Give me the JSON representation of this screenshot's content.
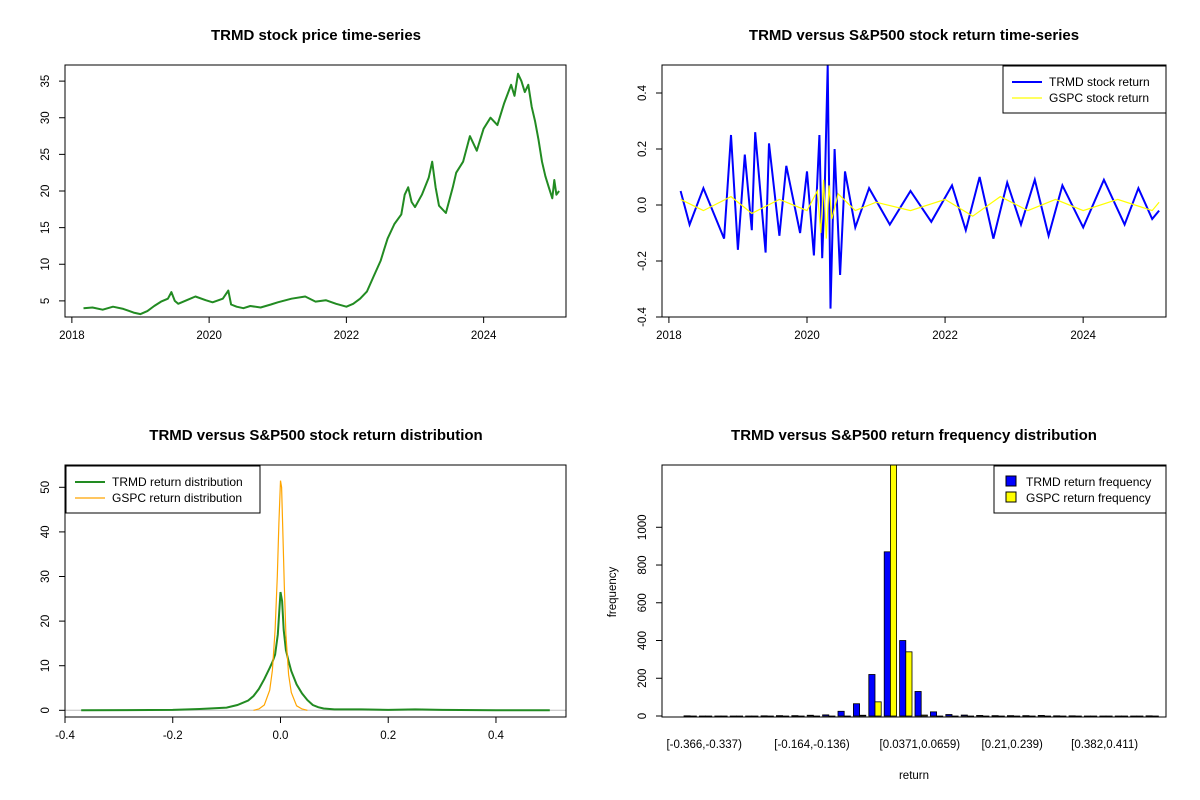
{
  "colors": {
    "price": "#228B22",
    "trmd_return": "#0000FF",
    "gspc_return": "#FFFF00",
    "trmd_density": "#228B22",
    "gspc_density": "#FFA500",
    "hist_trmd": "#0000FF",
    "hist_gspc": "#FFFF00",
    "zero_line": "#BEBEBE"
  },
  "chart_data": [
    {
      "id": "price",
      "type": "line",
      "title": "TRMD stock price time-series",
      "xlabel": "",
      "ylabel": "",
      "xlim": [
        2017.9,
        2025.2
      ],
      "ylim": [
        2.8,
        37.2
      ],
      "x_ticks": [
        2018,
        2020,
        2022,
        2024
      ],
      "x_tick_labels": [
        "2018",
        "2020",
        "2022",
        "2024"
      ],
      "y_ticks": [
        5,
        10,
        15,
        20,
        25,
        30,
        35
      ],
      "y_tick_labels": [
        "5",
        "10",
        "15",
        "20",
        "25",
        "30",
        "35"
      ],
      "series": [
        {
          "name": "TRMD price",
          "x": [
            2018.17,
            2018.3,
            2018.45,
            2018.6,
            2018.75,
            2018.9,
            2019.0,
            2019.1,
            2019.2,
            2019.3,
            2019.4,
            2019.45,
            2019.5,
            2019.55,
            2019.7,
            2019.8,
            2019.95,
            2020.05,
            2020.2,
            2020.28,
            2020.32,
            2020.4,
            2020.5,
            2020.6,
            2020.75,
            2020.9,
            2021.0,
            2021.2,
            2021.4,
            2021.55,
            2021.7,
            2021.85,
            2022.0,
            2022.1,
            2022.2,
            2022.3,
            2022.4,
            2022.5,
            2022.55,
            2022.6,
            2022.7,
            2022.8,
            2022.85,
            2022.9,
            2022.95,
            2023.0,
            2023.1,
            2023.2,
            2023.25,
            2023.3,
            2023.35,
            2023.45,
            2023.55,
            2023.6,
            2023.7,
            2023.8,
            2023.9,
            2024.0,
            2024.1,
            2024.2,
            2024.3,
            2024.4,
            2024.45,
            2024.5,
            2024.55,
            2024.6,
            2024.65,
            2024.7,
            2024.75,
            2024.8,
            2024.85,
            2024.9,
            2024.95,
            2025.0,
            2025.03,
            2025.06,
            2025.1
          ],
          "values": [
            4.0,
            4.1,
            3.8,
            4.2,
            3.9,
            3.4,
            3.2,
            3.6,
            4.3,
            4.9,
            5.3,
            6.2,
            5.0,
            4.6,
            5.2,
            5.6,
            5.1,
            4.8,
            5.3,
            6.4,
            4.5,
            4.2,
            4.0,
            4.3,
            4.1,
            4.5,
            4.8,
            5.3,
            5.6,
            4.9,
            5.1,
            4.6,
            4.2,
            4.6,
            5.3,
            6.3,
            8.4,
            10.5,
            12.0,
            13.5,
            15.5,
            16.8,
            19.5,
            20.5,
            18.5,
            17.8,
            19.5,
            21.8,
            24.0,
            20.5,
            18.0,
            17.0,
            20.5,
            22.5,
            24.0,
            27.5,
            25.5,
            28.5,
            30.0,
            29.0,
            32.0,
            34.5,
            33.0,
            36.0,
            35.0,
            33.5,
            34.5,
            31.5,
            29.5,
            27.0,
            24.0,
            22.0,
            20.5,
            19.0,
            21.5,
            19.5,
            20.0
          ]
        }
      ]
    },
    {
      "id": "returns_ts",
      "type": "line",
      "title": "TRMD versus S&P500 stock return time-series",
      "xlabel": "",
      "ylabel": "",
      "xlim": [
        2017.9,
        2025.2
      ],
      "ylim": [
        -0.4,
        0.5
      ],
      "x_ticks": [
        2018,
        2020,
        2022,
        2024
      ],
      "x_tick_labels": [
        "2018",
        "2020",
        "2022",
        "2024"
      ],
      "y_ticks": [
        -0.4,
        -0.2,
        0.0,
        0.2,
        0.4
      ],
      "y_tick_labels": [
        "-0.4",
        "-0.2",
        "0.0",
        "0.2",
        "0.4"
      ],
      "legend": [
        "TRMD stock return",
        "GSPC stock return"
      ],
      "legend_position": "top-right",
      "series": [
        {
          "name": "TRMD stock return",
          "x": [
            2018.17,
            2018.3,
            2018.5,
            2018.8,
            2018.9,
            2019.0,
            2019.1,
            2019.2,
            2019.25,
            2019.4,
            2019.45,
            2019.6,
            2019.7,
            2019.9,
            2020.0,
            2020.1,
            2020.18,
            2020.22,
            2020.26,
            2020.3,
            2020.34,
            2020.4,
            2020.48,
            2020.55,
            2020.7,
            2020.9,
            2021.2,
            2021.5,
            2021.8,
            2022.1,
            2022.3,
            2022.5,
            2022.7,
            2022.9,
            2023.1,
            2023.3,
            2023.5,
            2023.7,
            2024.0,
            2024.3,
            2024.6,
            2024.8,
            2025.0,
            2025.1
          ],
          "values": [
            0.05,
            -0.07,
            0.06,
            -0.12,
            0.25,
            -0.16,
            0.18,
            -0.09,
            0.26,
            -0.17,
            0.22,
            -0.11,
            0.14,
            -0.1,
            0.12,
            -0.18,
            0.25,
            -0.19,
            0.08,
            0.5,
            -0.37,
            0.2,
            -0.25,
            0.12,
            -0.08,
            0.06,
            -0.07,
            0.05,
            -0.06,
            0.07,
            -0.09,
            0.1,
            -0.12,
            0.08,
            -0.07,
            0.09,
            -0.11,
            0.07,
            -0.08,
            0.09,
            -0.07,
            0.06,
            -0.05,
            -0.02
          ]
        },
        {
          "name": "GSPC stock return",
          "x": [
            2018.17,
            2018.5,
            2018.9,
            2019.2,
            2019.6,
            2020.0,
            2020.15,
            2020.2,
            2020.24,
            2020.28,
            2020.32,
            2020.36,
            2020.45,
            2020.7,
            2021.0,
            2021.5,
            2022.0,
            2022.4,
            2022.8,
            2023.2,
            2023.6,
            2024.0,
            2024.5,
            2025.0,
            2025.1
          ],
          "values": [
            0.02,
            -0.02,
            0.03,
            -0.03,
            0.02,
            -0.02,
            0.05,
            -0.1,
            0.09,
            -0.12,
            0.07,
            -0.05,
            0.04,
            -0.02,
            0.01,
            -0.02,
            0.02,
            -0.04,
            0.03,
            -0.02,
            0.02,
            -0.02,
            0.02,
            -0.02,
            0.01
          ]
        }
      ]
    },
    {
      "id": "density",
      "type": "line",
      "title": "TRMD versus S&P500 stock return distribution",
      "xlabel": "",
      "ylabel": "",
      "xlim": [
        -0.4,
        0.53
      ],
      "ylim": [
        -1.5,
        55
      ],
      "x_ticks": [
        -0.4,
        -0.2,
        0.0,
        0.2,
        0.4
      ],
      "x_tick_labels": [
        "-0.4",
        "-0.2",
        "0.0",
        "0.2",
        "0.4"
      ],
      "y_ticks": [
        0,
        10,
        20,
        30,
        40,
        50
      ],
      "y_tick_labels": [
        "0",
        "10",
        "20",
        "30",
        "40",
        "50"
      ],
      "legend": [
        "TRMD return distribution",
        "GSPC return distribution"
      ],
      "legend_position": "top-left",
      "series": [
        {
          "name": "TRMD return distribution",
          "x": [
            -0.37,
            -0.2,
            -0.15,
            -0.1,
            -0.08,
            -0.06,
            -0.05,
            -0.04,
            -0.03,
            -0.02,
            -0.015,
            -0.01,
            -0.005,
            0.0,
            0.003,
            0.006,
            0.01,
            0.015,
            0.02,
            0.03,
            0.04,
            0.05,
            0.06,
            0.07,
            0.08,
            0.1,
            0.15,
            0.2,
            0.25,
            0.3,
            0.4,
            0.5
          ],
          "values": [
            0.0,
            0.1,
            0.3,
            0.6,
            1.2,
            2.2,
            3.2,
            4.8,
            7.0,
            9.5,
            10.8,
            12.5,
            17.0,
            26.5,
            24.5,
            18.0,
            13.5,
            11.0,
            8.8,
            5.8,
            3.8,
            2.3,
            1.2,
            0.7,
            0.4,
            0.2,
            0.2,
            0.1,
            0.2,
            0.1,
            0.0,
            0.0
          ]
        },
        {
          "name": "GSPC return distribution",
          "x": [
            -0.05,
            -0.04,
            -0.03,
            -0.02,
            -0.015,
            -0.01,
            -0.006,
            -0.003,
            0.0,
            0.002,
            0.004,
            0.007,
            0.01,
            0.015,
            0.02,
            0.03,
            0.04,
            0.05
          ],
          "values": [
            0.0,
            0.3,
            1.2,
            4.5,
            9.0,
            18.0,
            30.0,
            42.0,
            51.5,
            50.0,
            42.0,
            28.0,
            17.0,
            8.0,
            4.0,
            1.0,
            0.3,
            0.0
          ]
        }
      ]
    },
    {
      "id": "histogram",
      "type": "bar",
      "title": "TRMD versus S&P500 return frequency distribution",
      "xlabel": "return",
      "ylabel": "frequency",
      "ylim": [
        0,
        1330
      ],
      "y_ticks": [
        0,
        200,
        400,
        600,
        800,
        1000
      ],
      "y_tick_labels": [
        "0",
        "200",
        "400",
        "600",
        "800",
        "1000"
      ],
      "category_tick_labels": [
        {
          "index": 0,
          "label": "[-0.366,-0.337)"
        },
        {
          "index": 7,
          "label": "[-0.164,-0.136)"
        },
        {
          "index": 14,
          "label": "[0.0371,0.0659)"
        },
        {
          "index": 20,
          "label": "[0.21,0.239)"
        },
        {
          "index": 26,
          "label": "[0.382,0.411)"
        }
      ],
      "legend": [
        "TRMD return frequency",
        "GSPC return frequency"
      ],
      "legend_position": "top-right",
      "n_categories": 31,
      "series": [
        {
          "name": "TRMD return frequency",
          "values": [
            1,
            0,
            0,
            0,
            0,
            1,
            2,
            2,
            4,
            6,
            25,
            65,
            220,
            870,
            400,
            130,
            22,
            8,
            5,
            3,
            2,
            2,
            2,
            3,
            1,
            1,
            0,
            0,
            0,
            0,
            1
          ]
        },
        {
          "name": "GSPC return frequency",
          "values": [
            0,
            0,
            0,
            0,
            0,
            0,
            0,
            0,
            0,
            0,
            0,
            4,
            75,
            1330,
            340,
            5,
            0,
            0,
            0,
            0,
            0,
            0,
            0,
            0,
            0,
            0,
            0,
            0,
            0,
            0,
            0
          ]
        }
      ]
    }
  ]
}
